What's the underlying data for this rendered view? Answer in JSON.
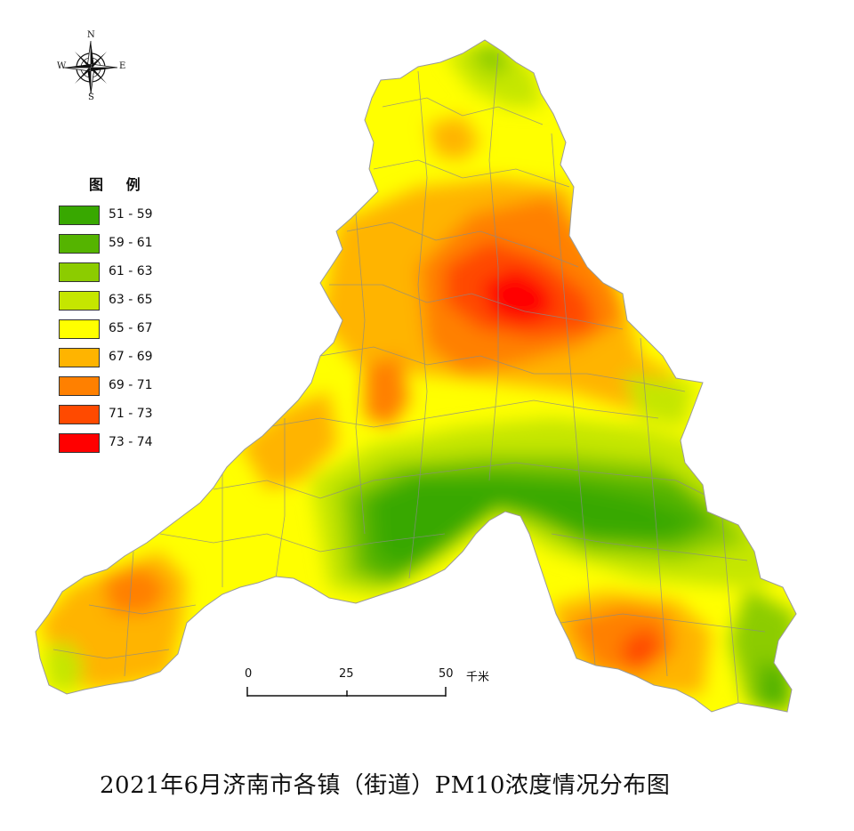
{
  "title": "2021年6月济南市各镇（街道）PM10浓度情况分布图",
  "compass": {
    "n": "N",
    "s": "S",
    "e": "E",
    "w": "W"
  },
  "legend": {
    "title": "图 例",
    "items": [
      {
        "label": "51 - 59",
        "color": "#38a800"
      },
      {
        "label": "59 - 61",
        "color": "#55b400"
      },
      {
        "label": "61 - 63",
        "color": "#8ccc00"
      },
      {
        "label": "63 - 65",
        "color": "#c5e600"
      },
      {
        "label": "65 - 67",
        "color": "#ffff00"
      },
      {
        "label": "67 - 69",
        "color": "#ffb400"
      },
      {
        "label": "69 - 71",
        "color": "#ff8000"
      },
      {
        "label": "71 - 73",
        "color": "#ff4a00"
      },
      {
        "label": "73 - 74",
        "color": "#ff0000"
      }
    ]
  },
  "scale": {
    "ticks": [
      "0",
      "25",
      "50"
    ],
    "unit": "千米"
  }
}
